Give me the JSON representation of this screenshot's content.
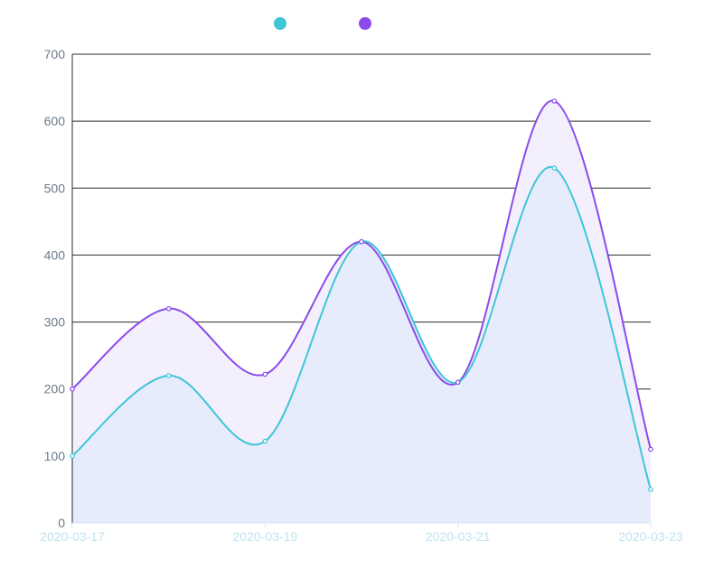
{
  "chart_data": {
    "type": "area",
    "x": [
      "2020-03-17",
      "2020-03-18",
      "2020-03-19",
      "2020-03-20",
      "2020-03-21",
      "2020-03-22",
      "2020-03-23"
    ],
    "x_tick_labels": [
      "2020-03-17",
      "2020-03-19",
      "2020-03-21",
      "2020-03-23"
    ],
    "series": [
      {
        "values": [
          100,
          220,
          122,
          420,
          210,
          530,
          50
        ],
        "color": "#3ec6d7",
        "fill": "#e6ecfb"
      },
      {
        "values": [
          200,
          320,
          222,
          420,
          210,
          630,
          110
        ],
        "color": "#8a4bea",
        "fill": "#f4effd"
      }
    ],
    "ylim": [
      0,
      700
    ],
    "yticks": [
      0,
      100,
      200,
      300,
      400,
      500,
      600,
      700
    ],
    "smooth": true,
    "grid": true,
    "legend_position": "top"
  }
}
